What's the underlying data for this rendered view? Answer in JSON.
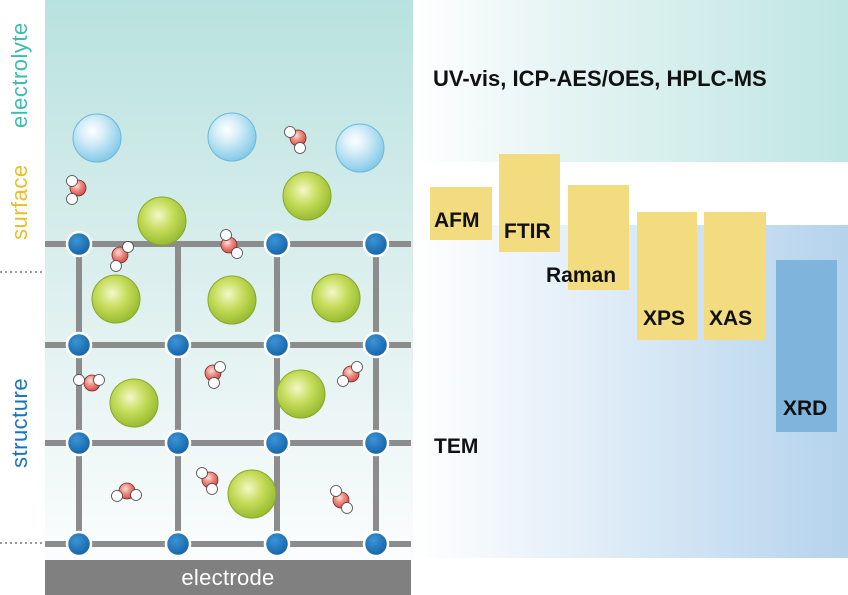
{
  "labels": {
    "electrolyte": "electrolyte",
    "surface": "surface",
    "structure": "structure",
    "electrode": "electrode"
  },
  "techniques": {
    "electrolyte": "UV-vis, ICP-AES/OES, HPLC-MS",
    "afm": "AFM",
    "ftir": "FTIR",
    "raman": "Raman",
    "xps": "XPS",
    "xas": "XAS",
    "xrd": "XRD",
    "tem": "TEM"
  },
  "colors": {
    "electrolyte_label": "#3cbdb3",
    "surface_label": "#e8bf2a",
    "structure_label": "#1a75be",
    "lattice_node": "#1a75be",
    "lattice_bar": "#8c8c8c",
    "electrode": "#808080",
    "surface_box": "#f2dc7f",
    "xrd_box": "#7fb4dd",
    "electrolyte_band": "#bfe6e3",
    "structure_band": "#b9d6ec",
    "ion_electrolyte": "#a9dcef",
    "ion_lattice": "#a8c83a",
    "water_oxygen": "#e06a66"
  },
  "icons": [
    "lattice-node",
    "electrolyte-ion",
    "lattice-ion",
    "water-molecule"
  ]
}
